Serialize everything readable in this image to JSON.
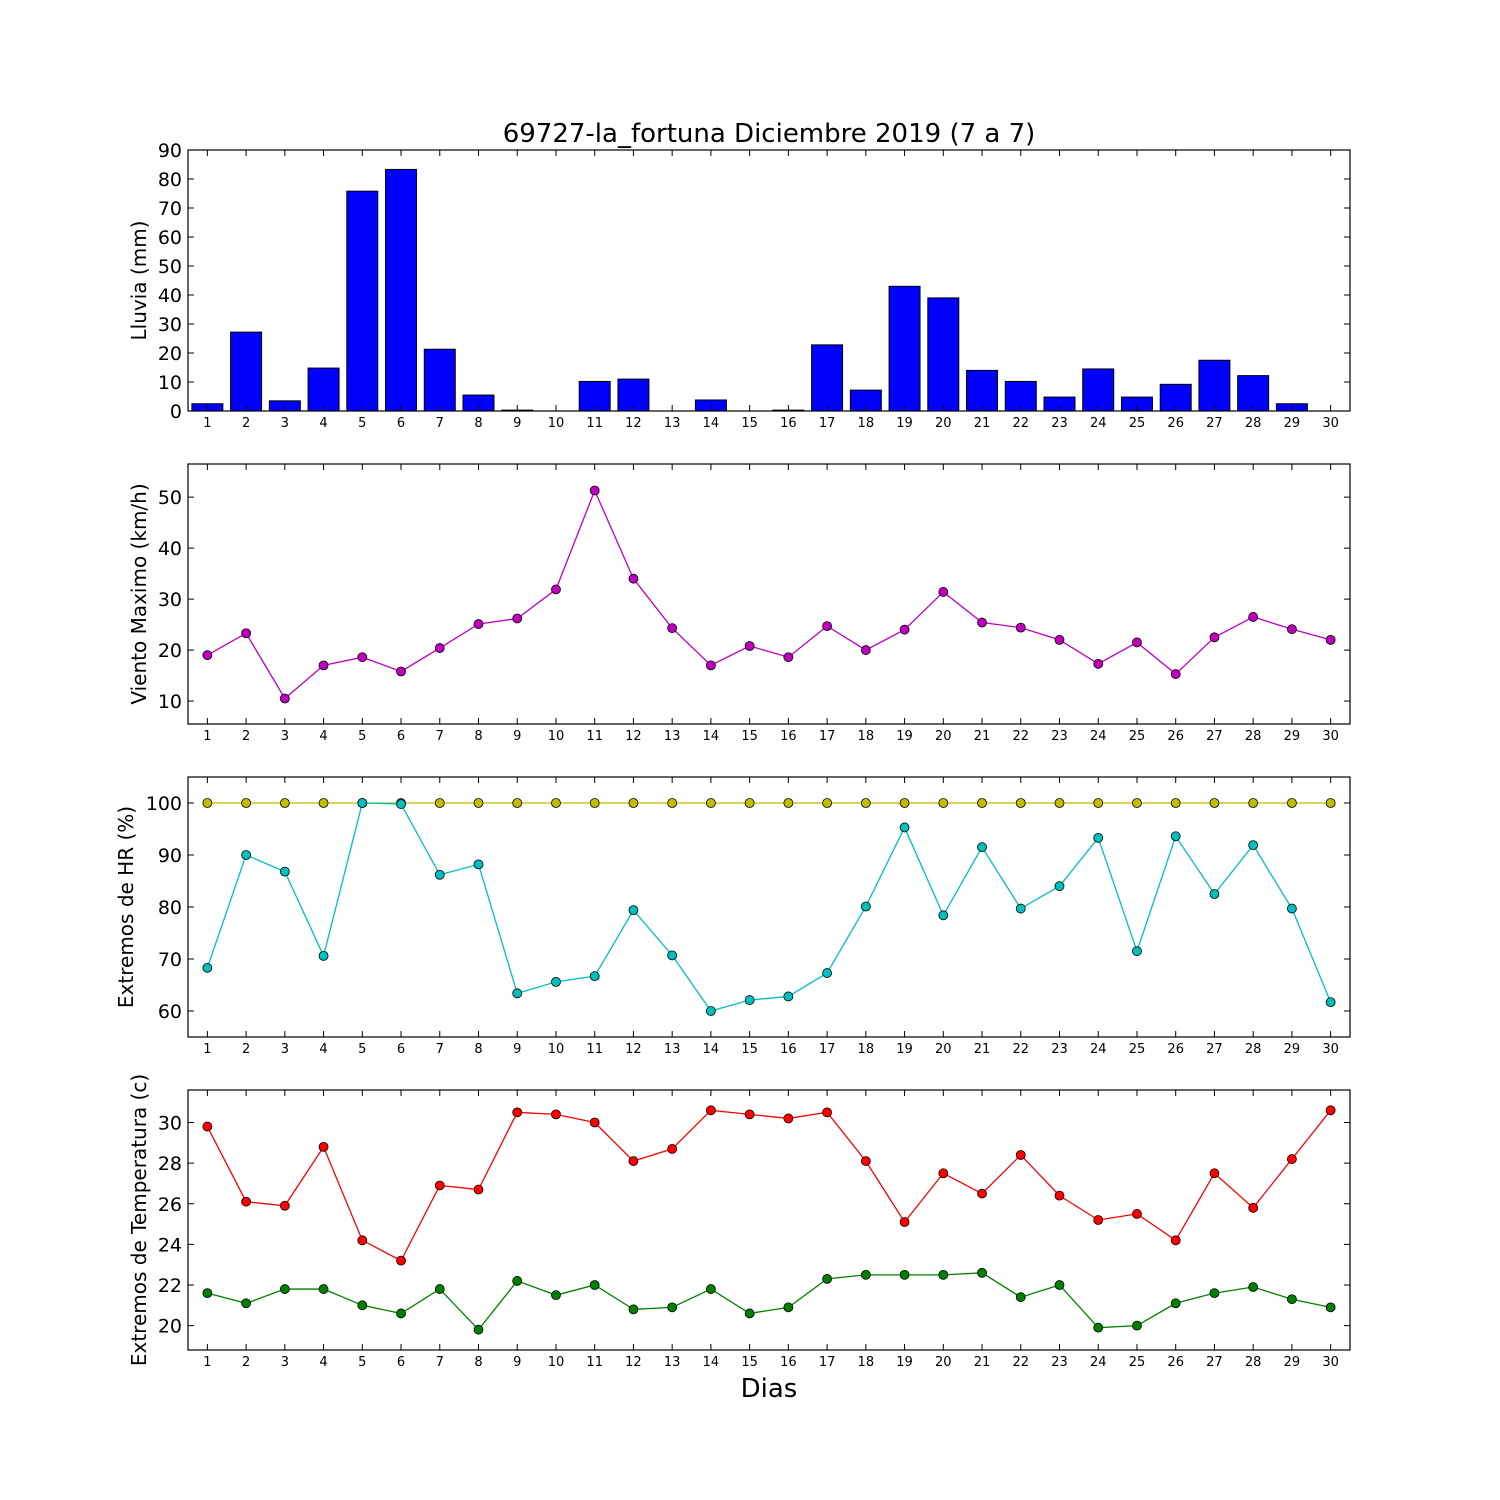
{
  "figure": {
    "title": "69727-la_fortuna Diciembre 2019  (7 a 7)",
    "xlabel": "Dias"
  },
  "chart_data": [
    {
      "type": "bar",
      "ylabel": "Lluvia (mm)",
      "ylim": [
        0,
        90
      ],
      "yticks": [
        0,
        10,
        20,
        30,
        40,
        50,
        60,
        70,
        80,
        90
      ],
      "categories": [
        "1",
        "2",
        "3",
        "4",
        "5",
        "6",
        "7",
        "8",
        "9",
        "10",
        "11",
        "12",
        "13",
        "14",
        "15",
        "16",
        "17",
        "18",
        "19",
        "20",
        "21",
        "22",
        "23",
        "24",
        "25",
        "26",
        "27",
        "28",
        "29",
        "30"
      ],
      "series": [
        {
          "values": [
            2.5,
            27.2,
            3.5,
            14.8,
            75.8,
            83.3,
            21.3,
            5.5,
            0.3,
            0,
            10.2,
            11,
            0,
            3.8,
            0,
            0.3,
            22.8,
            7.2,
            43,
            39,
            14,
            10.2,
            4.8,
            14.5,
            4.8,
            9.2,
            17.5,
            12.2,
            2.5,
            0
          ],
          "color": "#0000ff"
        }
      ],
      "xlim": [
        0.5,
        30.5
      ],
      "grid": false
    },
    {
      "type": "line",
      "ylabel": "Viento Maximo (km/h)",
      "ylim": [
        5.5,
        56.5
      ],
      "yticks": [
        10,
        20,
        30,
        40,
        50
      ],
      "x": [
        1,
        2,
        3,
        4,
        5,
        6,
        7,
        8,
        9,
        10,
        11,
        12,
        13,
        14,
        15,
        16,
        17,
        18,
        19,
        20,
        21,
        22,
        23,
        24,
        25,
        26,
        27,
        28,
        29,
        30
      ],
      "xticks": [
        1,
        2,
        3,
        4,
        5,
        6,
        7,
        8,
        9,
        10,
        11,
        12,
        13,
        14,
        15,
        16,
        17,
        18,
        19,
        20,
        21,
        22,
        23,
        24,
        25,
        26,
        27,
        28,
        29,
        30
      ],
      "xlim": [
        0.5,
        30.5
      ],
      "series": [
        {
          "values": [
            19,
            23.3,
            10.5,
            17,
            18.6,
            15.8,
            20.4,
            25.1,
            26.2,
            31.9,
            51.3,
            34,
            24.3,
            17,
            20.8,
            18.6,
            24.7,
            20,
            24,
            31.4,
            25.4,
            24.4,
            22,
            17.3,
            21.5,
            15.3,
            22.5,
            26.5,
            24.1,
            22
          ],
          "color": "#bf00bf"
        }
      ],
      "grid": false
    },
    {
      "type": "line",
      "ylabel": "Extremos de HR (%)",
      "ylim": [
        55,
        105
      ],
      "yticks": [
        60,
        70,
        80,
        90,
        100
      ],
      "x": [
        1,
        2,
        3,
        4,
        5,
        6,
        7,
        8,
        9,
        10,
        11,
        12,
        13,
        14,
        15,
        16,
        17,
        18,
        19,
        20,
        21,
        22,
        23,
        24,
        25,
        26,
        27,
        28,
        29,
        30
      ],
      "xticks": [
        1,
        2,
        3,
        4,
        5,
        6,
        7,
        8,
        9,
        10,
        11,
        12,
        13,
        14,
        15,
        16,
        17,
        18,
        19,
        20,
        21,
        22,
        23,
        24,
        25,
        26,
        27,
        28,
        29,
        30
      ],
      "xlim": [
        0.5,
        30.5
      ],
      "series": [
        {
          "values": [
            100,
            100,
            100,
            100,
            100,
            100,
            100,
            100,
            100,
            100,
            100,
            100,
            100,
            100,
            100,
            100,
            100,
            100,
            100,
            100,
            100,
            100,
            100,
            100,
            100,
            100,
            100,
            100,
            100,
            100
          ],
          "color": "#bfbf00"
        },
        {
          "values": [
            68.3,
            90,
            86.8,
            70.6,
            100,
            99.8,
            86.2,
            88.2,
            63.4,
            65.6,
            66.7,
            79.4,
            70.7,
            60,
            62.1,
            62.8,
            67.3,
            80.1,
            95.3,
            78.4,
            91.5,
            79.7,
            84,
            93.3,
            71.5,
            93.6,
            82.5,
            91.9,
            79.7,
            61.7
          ],
          "color": "#00bfbf"
        }
      ],
      "grid": false
    },
    {
      "type": "line",
      "ylabel": "Extremos de Temperatura (c)",
      "ylim": [
        18.8,
        31.6
      ],
      "yticks": [
        20,
        22,
        24,
        26,
        28,
        30
      ],
      "x": [
        1,
        2,
        3,
        4,
        5,
        6,
        7,
        8,
        9,
        10,
        11,
        12,
        13,
        14,
        15,
        16,
        17,
        18,
        19,
        20,
        21,
        22,
        23,
        24,
        25,
        26,
        27,
        28,
        29,
        30
      ],
      "xticks": [
        1,
        2,
        3,
        4,
        5,
        6,
        7,
        8,
        9,
        10,
        11,
        12,
        13,
        14,
        15,
        16,
        17,
        18,
        19,
        20,
        21,
        22,
        23,
        24,
        25,
        26,
        27,
        28,
        29,
        30
      ],
      "xlim": [
        0.5,
        30.5
      ],
      "series": [
        {
          "values": [
            29.8,
            26.1,
            25.9,
            28.8,
            24.2,
            23.2,
            26.9,
            26.7,
            30.5,
            30.4,
            30,
            28.1,
            28.7,
            30.6,
            30.4,
            30.2,
            30.5,
            28.1,
            25.1,
            27.5,
            26.5,
            28.4,
            26.4,
            25.2,
            25.5,
            24.2,
            27.5,
            25.8,
            28.2,
            30.6
          ],
          "color": "#ff0000"
        },
        {
          "values": [
            21.6,
            21.1,
            21.8,
            21.8,
            21,
            20.6,
            21.8,
            19.8,
            22.2,
            21.5,
            22,
            20.8,
            20.9,
            21.8,
            20.6,
            20.9,
            22.3,
            22.5,
            22.5,
            22.5,
            22.6,
            21.4,
            22,
            19.9,
            20,
            21.1,
            21.6,
            21.9,
            21.3,
            20.9
          ],
          "color": "#008000"
        }
      ],
      "grid": false
    }
  ]
}
